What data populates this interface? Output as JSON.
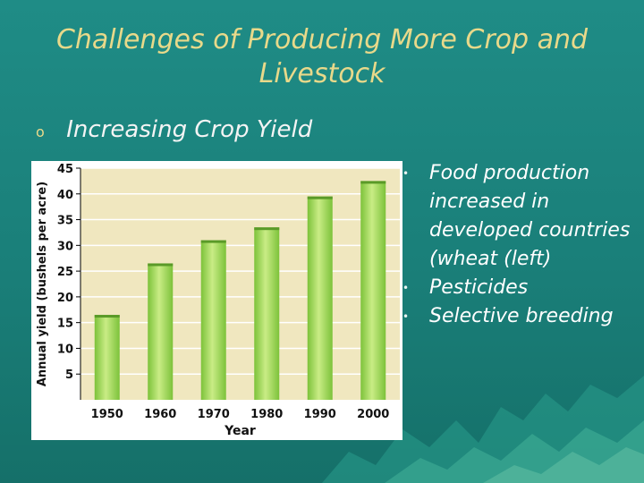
{
  "slide": {
    "title_line1": "Challenges of Producing More Crop and",
    "title_line2": "Livestock",
    "subtitle": "Increasing Crop Yield",
    "subtitle_bullet": "o",
    "bullets": [
      "Food production increased in developed countries (wheat (left)",
      "Pesticides",
      "Selective breeding"
    ],
    "bullet_marker": "•"
  },
  "chart_data": {
    "type": "bar",
    "categories": [
      "1950",
      "1960",
      "1970",
      "1980",
      "1990",
      "2000"
    ],
    "values": [
      16.5,
      26.5,
      31,
      33.5,
      39.5,
      42.5
    ],
    "xlabel": "Year",
    "ylabel": "Annual yield (bushels per acre)",
    "ylim": [
      0,
      45
    ],
    "yticks": [
      5,
      10,
      15,
      20,
      25,
      30,
      35,
      40,
      45
    ],
    "grid": true,
    "colors": {
      "bar": "#7cc23a",
      "bar_highlight": "#c9ec85",
      "plot_bg": "#f0e7bf",
      "grid": "#ffffff"
    }
  }
}
